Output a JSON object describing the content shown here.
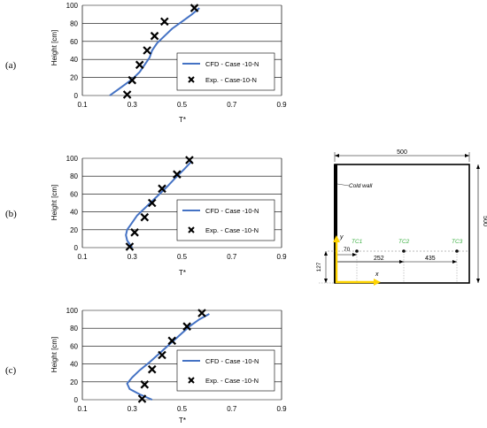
{
  "panels": [
    {
      "label": "(a)"
    },
    {
      "label": "(b)"
    },
    {
      "label": "(c)"
    }
  ],
  "chart_data": [
    {
      "type": "line",
      "ylabel": "Height [cm]",
      "xlabel": "T*",
      "xlim": [
        0.1,
        0.9
      ],
      "ylim": [
        0,
        100
      ],
      "xticks": [
        "0.1",
        "0.3",
        "0.5",
        "0.7",
        "0.9"
      ],
      "yticks": [
        "0",
        "20",
        "40",
        "60",
        "80",
        "100"
      ],
      "grid": "horizontal",
      "legend_position": "right",
      "series": [
        {
          "name": "CFD - Case -10-N",
          "kind": "line",
          "color": "#4472c4",
          "x": [
            0.21,
            0.24,
            0.27,
            0.3,
            0.33,
            0.35,
            0.37,
            0.38,
            0.4,
            0.43,
            0.46,
            0.5,
            0.54,
            0.57
          ],
          "y": [
            0,
            6,
            12,
            18,
            26,
            34,
            42,
            50,
            58,
            66,
            74,
            82,
            90,
            97
          ]
        },
        {
          "name": "Exp. - Case-10-N",
          "kind": "markers",
          "marker": "x",
          "x": [
            0.28,
            0.3,
            0.33,
            0.36,
            0.39,
            0.43,
            0.55
          ],
          "y": [
            1,
            17,
            34,
            50,
            66,
            82,
            97
          ]
        }
      ]
    },
    {
      "type": "line",
      "ylabel": "Height [cm]",
      "xlabel": "T*",
      "xlim": [
        0.1,
        0.9
      ],
      "ylim": [
        0,
        100
      ],
      "xticks": [
        "0.1",
        "0.3",
        "0.5",
        "0.7",
        "0.9"
      ],
      "yticks": [
        "0",
        "20",
        "40",
        "60",
        "80",
        "100"
      ],
      "grid": "horizontal",
      "legend_position": "right",
      "series": [
        {
          "name": "CFD - Case -10-N",
          "kind": "line",
          "color": "#4472c4",
          "x": [
            0.3,
            0.28,
            0.275,
            0.28,
            0.3,
            0.32,
            0.35,
            0.38,
            0.41,
            0.44,
            0.47,
            0.51,
            0.54
          ],
          "y": [
            0,
            8,
            14,
            20,
            28,
            36,
            44,
            52,
            60,
            68,
            77,
            88,
            97
          ]
        },
        {
          "name": "Exp. - Case -10-N",
          "kind": "markers",
          "marker": "x",
          "x": [
            0.29,
            0.31,
            0.35,
            0.38,
            0.42,
            0.48,
            0.53
          ],
          "y": [
            1,
            17,
            34,
            50,
            66,
            82,
            98
          ]
        }
      ]
    },
    {
      "type": "line",
      "ylabel": "Height [cm]",
      "xlabel": "T*",
      "xlim": [
        0.1,
        0.9
      ],
      "ylim": [
        0,
        100
      ],
      "xticks": [
        "0.1",
        "0.3",
        "0.5",
        "0.7",
        "0.9"
      ],
      "yticks": [
        "0",
        "20",
        "40",
        "60",
        "80",
        "100"
      ],
      "grid": "horizontal",
      "legend_position": "right",
      "series": [
        {
          "name": "CFD - Case -10-N",
          "kind": "line",
          "color": "#4472c4",
          "x": [
            0.38,
            0.33,
            0.29,
            0.28,
            0.3,
            0.33,
            0.37,
            0.41,
            0.45,
            0.49,
            0.53,
            0.57,
            0.61
          ],
          "y": [
            0,
            6,
            12,
            18,
            25,
            33,
            42,
            52,
            62,
            72,
            82,
            90,
            96
          ]
        },
        {
          "name": "Exp. - Case -10-N",
          "kind": "markers",
          "marker": "x",
          "x": [
            0.34,
            0.35,
            0.38,
            0.42,
            0.46,
            0.52,
            0.58
          ],
          "y": [
            1,
            17,
            34,
            50,
            66,
            82,
            97
          ]
        }
      ]
    }
  ],
  "diagram": {
    "width_label": "500",
    "height_label": "500",
    "cold_wall_label": "Cold wall",
    "y_axis_label": "y",
    "x_axis_label": "x",
    "sensors": [
      "TC1",
      "TC2",
      "TC3"
    ],
    "dim_70": "70",
    "dim_252": "252",
    "dim_435": "435",
    "dim_127": "127",
    "sensor_color": "#3cb043",
    "axis_color": "#ffd400"
  }
}
